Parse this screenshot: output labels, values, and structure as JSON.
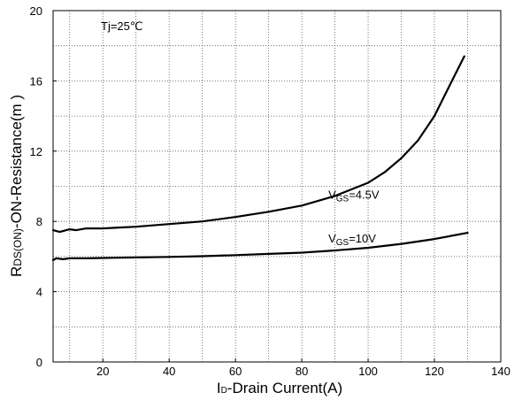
{
  "chart_data": {
    "type": "line",
    "xlabel": "ID-Drain Current(A)",
    "ylabel": "RDS(ON)-ON-Resistance(m )",
    "xlabel_parts": {
      "main": "I",
      "sub": "D",
      "rest": "-Drain Current(A)"
    },
    "ylabel_parts": {
      "main": "R",
      "sub": "DS(ON)",
      "rest": "-ON-Resistance(m   )"
    },
    "xlim": [
      5,
      140
    ],
    "ylim": [
      0,
      20
    ],
    "xticks": [
      "20",
      "40",
      "60",
      "80",
      "100",
      "120",
      "140"
    ],
    "yticks": [
      "0",
      "4",
      "8",
      "12",
      "16",
      "20"
    ],
    "x_tick_values": [
      20,
      40,
      60,
      80,
      100,
      120,
      140
    ],
    "y_tick_values": [
      0,
      4,
      8,
      12,
      16,
      20
    ],
    "grid": "dotted",
    "legend": "none",
    "annotation": "Tj=25℃",
    "series": [
      {
        "label_main": "V",
        "label_sub": "GS",
        "label_rest": "=4.5V",
        "label_at": {
          "x": 88,
          "y": 9.3
        },
        "color": "#000000",
        "points": [
          [
            5,
            7.5
          ],
          [
            7,
            7.4
          ],
          [
            10,
            7.55
          ],
          [
            12,
            7.5
          ],
          [
            15,
            7.6
          ],
          [
            20,
            7.6
          ],
          [
            25,
            7.65
          ],
          [
            30,
            7.7
          ],
          [
            40,
            7.85
          ],
          [
            50,
            8.0
          ],
          [
            60,
            8.25
          ],
          [
            70,
            8.55
          ],
          [
            80,
            8.9
          ],
          [
            90,
            9.45
          ],
          [
            100,
            10.2
          ],
          [
            105,
            10.8
          ],
          [
            110,
            11.6
          ],
          [
            115,
            12.6
          ],
          [
            120,
            14.0
          ],
          [
            125,
            15.9
          ],
          [
            129,
            17.4
          ]
        ]
      },
      {
        "label_main": "V",
        "label_sub": "GS",
        "label_rest": "=10V",
        "label_at": {
          "x": 88,
          "y": 6.8
        },
        "color": "#000000",
        "points": [
          [
            5,
            5.8
          ],
          [
            6,
            5.9
          ],
          [
            8,
            5.85
          ],
          [
            10,
            5.9
          ],
          [
            15,
            5.9
          ],
          [
            20,
            5.92
          ],
          [
            30,
            5.95
          ],
          [
            40,
            5.98
          ],
          [
            50,
            6.02
          ],
          [
            60,
            6.08
          ],
          [
            70,
            6.15
          ],
          [
            80,
            6.22
          ],
          [
            90,
            6.35
          ],
          [
            100,
            6.5
          ],
          [
            110,
            6.72
          ],
          [
            120,
            7.0
          ],
          [
            130,
            7.35
          ]
        ]
      }
    ]
  }
}
